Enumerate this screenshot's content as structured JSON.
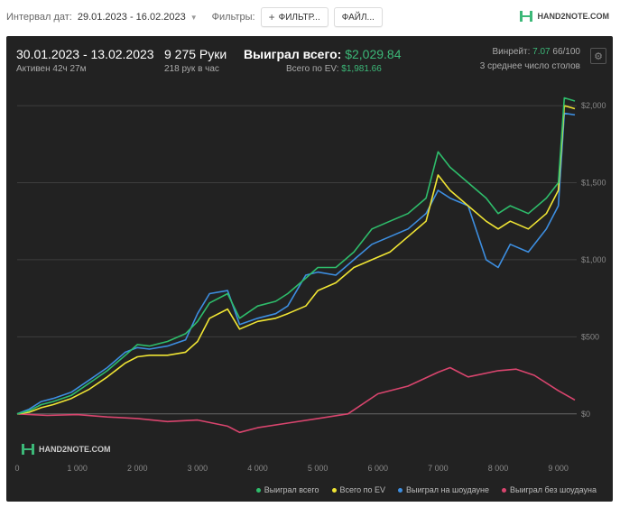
{
  "toolbar": {
    "date_label": "Интервал дат:",
    "date_range": "29.01.2023 - 16.02.2023",
    "filters_label": "Фильтры:",
    "filter_button": "ФИЛЬТР...",
    "file_button": "ФАЙЛ...",
    "logo": "HAND2NOTE.COM"
  },
  "stats": {
    "period": "30.01.2023 - 13.02.2023",
    "active": "Активен 42ч 27м",
    "hands": "9 275 Руки",
    "hands_per_hour": "218 рук в час",
    "won_label": "Выиграл всего:",
    "won_value": "$2,029.84",
    "ev_label": "Всего по EV:",
    "ev_value": "$1,981.66",
    "winrate_label": "Винрейт:",
    "winrate_value": "7.07",
    "winrate_suffix": "66/100",
    "avg_tables": "3 среднее число столов"
  },
  "watermark": "HAND2NOTE.COM",
  "colors": {
    "total": "#2ebd6b",
    "ev": "#f0e534",
    "showdown": "#3d8ee0",
    "nonshowdown": "#d9456e",
    "panel": "#222222",
    "accent": "#3cb878"
  },
  "chart_data": {
    "type": "line",
    "xlim": [
      0,
      9275
    ],
    "ylim": [
      -300,
      2100
    ],
    "x_ticks": [
      0,
      1000,
      2000,
      3000,
      4000,
      5000,
      6000,
      7000,
      8000,
      9000
    ],
    "x_tick_labels": [
      "0",
      "1 000",
      "2 000",
      "3 000",
      "4 000",
      "5 000",
      "6 000",
      "7 000",
      "8 000",
      "9 000"
    ],
    "y_ticks": [
      0,
      500,
      1000,
      1500,
      2000
    ],
    "y_tick_labels": [
      "$0",
      "$500",
      "$1,000",
      "$1,500",
      "$2,000"
    ],
    "grid": true,
    "legend_position": "bottom-right",
    "series": [
      {
        "name": "Выиграл всего",
        "key": "total",
        "x": [
          0,
          200,
          400,
          600,
          900,
          1200,
          1500,
          1800,
          2000,
          2200,
          2500,
          2800,
          3000,
          3200,
          3500,
          3700,
          4000,
          4300,
          4500,
          4800,
          5000,
          5300,
          5600,
          5900,
          6200,
          6500,
          6800,
          7000,
          7200,
          7500,
          7800,
          8000,
          8200,
          8500,
          8800,
          9000,
          9100,
          9275
        ],
        "values": [
          0,
          20,
          60,
          80,
          120,
          200,
          280,
          380,
          450,
          440,
          470,
          520,
          600,
          720,
          780,
          620,
          700,
          730,
          780,
          880,
          950,
          950,
          1050,
          1200,
          1250,
          1300,
          1400,
          1700,
          1600,
          1500,
          1400,
          1300,
          1350,
          1300,
          1400,
          1500,
          2050,
          2030
        ]
      },
      {
        "name": "Всего по EV",
        "key": "ev",
        "x": [
          0,
          200,
          400,
          600,
          900,
          1200,
          1500,
          1800,
          2000,
          2200,
          2500,
          2800,
          3000,
          3200,
          3500,
          3700,
          4000,
          4300,
          4500,
          4800,
          5000,
          5300,
          5600,
          5900,
          6200,
          6500,
          6800,
          7000,
          7200,
          7500,
          7800,
          8000,
          8200,
          8500,
          8800,
          9000,
          9100,
          9275
        ],
        "values": [
          0,
          10,
          40,
          60,
          100,
          160,
          240,
          330,
          370,
          380,
          380,
          400,
          470,
          620,
          680,
          550,
          600,
          620,
          650,
          700,
          800,
          850,
          950,
          1000,
          1050,
          1150,
          1250,
          1550,
          1450,
          1350,
          1250,
          1200,
          1250,
          1200,
          1300,
          1450,
          2000,
          1980
        ]
      },
      {
        "name": "Выиграл на шоудауне",
        "key": "showdown",
        "x": [
          0,
          200,
          400,
          600,
          900,
          1200,
          1500,
          1800,
          2000,
          2200,
          2500,
          2800,
          3000,
          3200,
          3500,
          3700,
          4000,
          4300,
          4500,
          4800,
          5000,
          5300,
          5600,
          5900,
          6200,
          6500,
          6800,
          7000,
          7200,
          7500,
          7800,
          8000,
          8200,
          8500,
          8800,
          9000,
          9100,
          9275
        ],
        "values": [
          0,
          30,
          80,
          100,
          140,
          220,
          300,
          400,
          430,
          420,
          440,
          480,
          650,
          780,
          800,
          580,
          620,
          650,
          700,
          900,
          920,
          900,
          1000,
          1100,
          1150,
          1200,
          1300,
          1450,
          1400,
          1350,
          1000,
          950,
          1100,
          1050,
          1200,
          1350,
          1950,
          1940
        ]
      },
      {
        "name": "Выиграл без шоудауна",
        "key": "nonshowdown",
        "x": [
          0,
          500,
          1000,
          1500,
          2000,
          2500,
          3000,
          3500,
          3700,
          4000,
          4500,
          5000,
          5500,
          6000,
          6500,
          7000,
          7200,
          7500,
          8000,
          8300,
          8600,
          9000,
          9275
        ],
        "values": [
          0,
          -10,
          -5,
          -20,
          -30,
          -50,
          -40,
          -80,
          -120,
          -90,
          -60,
          -30,
          0,
          130,
          180,
          270,
          300,
          240,
          280,
          290,
          250,
          150,
          90
        ]
      }
    ]
  }
}
